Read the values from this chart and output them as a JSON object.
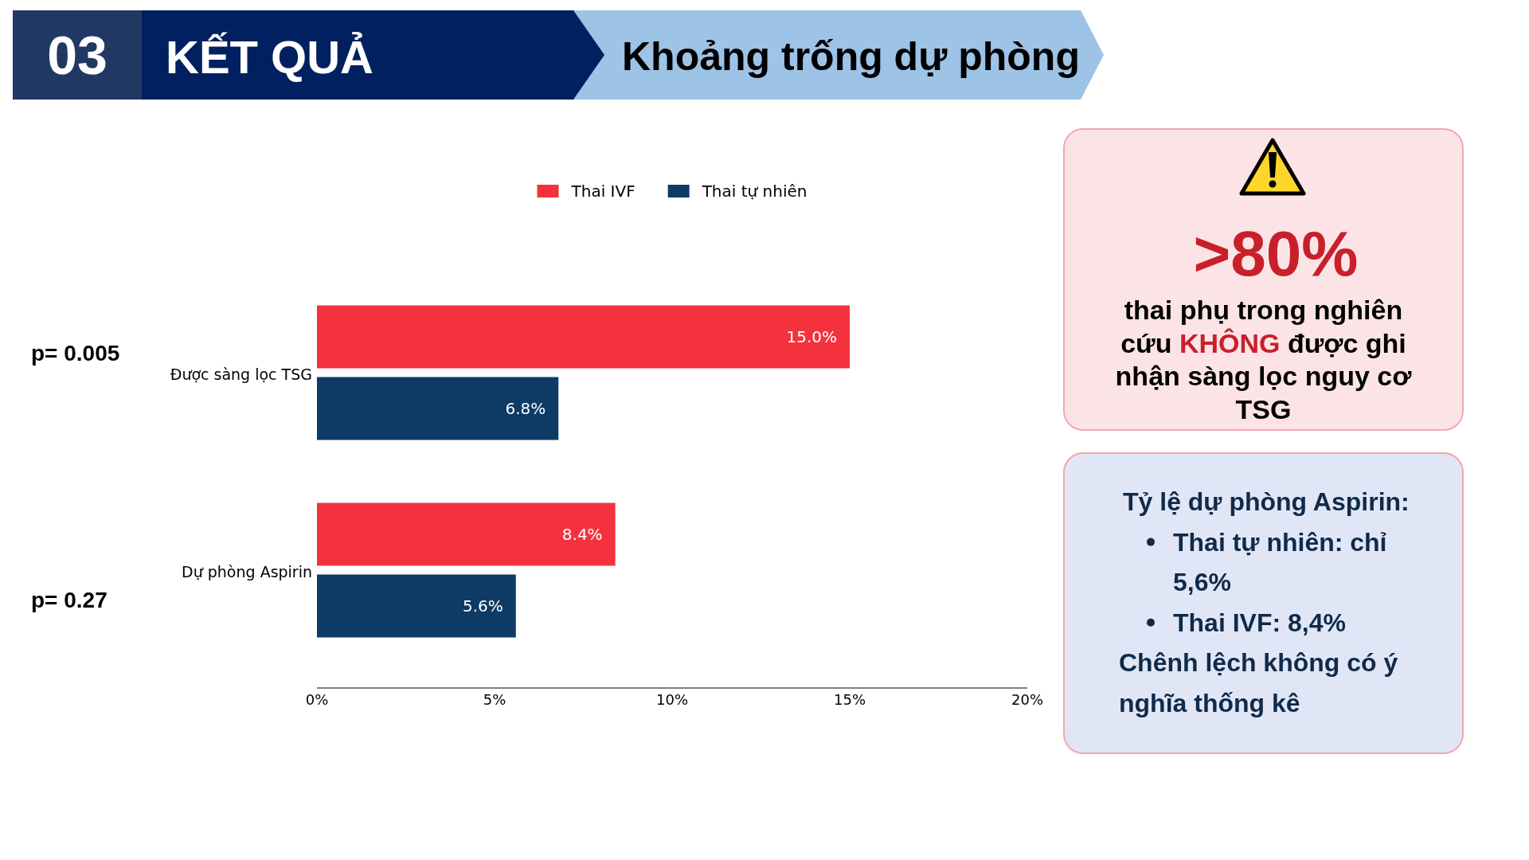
{
  "chart_data": [
    {
      "type": "bar",
      "orientation": "horizontal",
      "title": "Khoảng trống dự phòng",
      "categories": [
        "Được sàng lọc TSG",
        "Dự phòng Aspirin"
      ],
      "series": [
        {
          "name": "Thai IVF",
          "color": "#f3323e",
          "values": [
            15.0,
            8.4
          ],
          "value_labels": [
            "15.0%",
            "8.4%"
          ]
        },
        {
          "name": "Thai tự nhiên",
          "color": "#0e3a66",
          "values": [
            6.8,
            5.6
          ],
          "value_labels": [
            "6.8%",
            "5.6%"
          ]
        }
      ],
      "xlim": [
        0,
        20
      ],
      "xticks": [
        {
          "value": 0,
          "label": "0%"
        },
        {
          "value": 5,
          "label": "5%"
        },
        {
          "value": 10,
          "label": "10%"
        },
        {
          "value": 15,
          "label": "15%"
        },
        {
          "value": 20,
          "label": "20%"
        }
      ],
      "legend": "top",
      "annotations": [
        "03",
        "KẾT QUẢ",
        "p= 0.005",
        "p= 0.27"
      ]
    },
    {
      "type": "other",
      "annotations": [
        ">80%",
        "thai phụ trong nghiên cứu KHÔNG được ghi nhận sàng lọc nguy cơ TSG"
      ]
    },
    {
      "type": "other",
      "title": "Tỷ lệ dự phòng Aspirin:",
      "annotations": [
        "Thai tự nhiên: chỉ 5,6%",
        "Thai IVF: 8,4%",
        "Chênh lệch không có ý nghĩa thống kê"
      ]
    }
  ]
}
